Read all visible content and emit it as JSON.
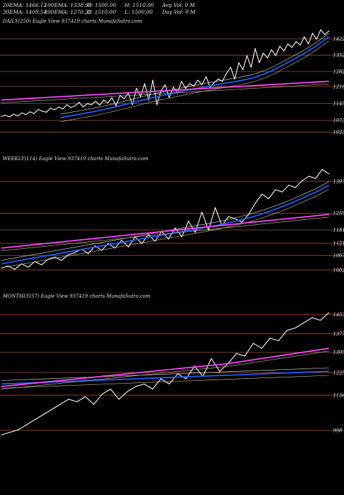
{
  "header": {
    "row1": [
      "20EMA: 1466.12",
      "100EMA: 1338.98",
      "O: 1500.00",
      "H: 1510.00",
      "Avg Vol: 0  M"
    ],
    "row2": [
      "30EMA: 1409.54",
      "200EMA: 1270.28",
      "C: 1510.00",
      "L: 1500.00",
      "Day Vol: 0  M"
    ]
  },
  "colors": {
    "background": "#000000",
    "price": "#ffffff",
    "ema_fast": "#1f5fff",
    "ema_slow": "#ff44ff",
    "level_line": "#a0522d"
  },
  "chart_data": [
    {
      "type": "line",
      "title": "DAILY(250) Eagle  View  937419 charts MunafaSutra.com",
      "levels": [
        1422,
        1352,
        1282,
        1218,
        1145,
        1073,
        1023
      ],
      "ylim": [
        1000,
        1470
      ],
      "series": [
        {
          "role": "price",
          "values": [
            1090,
            1095,
            1088,
            1100,
            1092,
            1105,
            1098,
            1110,
            1102,
            1120,
            1112,
            1108,
            1125,
            1118,
            1130,
            1122,
            1140,
            1128,
            1135,
            1150,
            1130,
            1145,
            1140,
            1155,
            1138,
            1160,
            1148,
            1170,
            1135,
            1180,
            1165,
            1190,
            1140,
            1210,
            1175,
            1230,
            1160,
            1245,
            1140,
            1200,
            1225,
            1170,
            1215,
            1190,
            1240,
            1210,
            1230,
            1220,
            1245,
            1225,
            1260,
            1215,
            1235,
            1250,
            1240,
            1275,
            1300,
            1250,
            1320,
            1290,
            1350,
            1300,
            1380,
            1320,
            1360,
            1340,
            1375,
            1350,
            1390,
            1370,
            1400,
            1385,
            1410,
            1395,
            1430,
            1400,
            1445,
            1420,
            1460,
            1440,
            1455
          ]
        },
        {
          "role": "ema_fast",
          "values": [
            1085,
            1090,
            1095,
            1100,
            1105,
            1110,
            1116,
            1122,
            1128,
            1135,
            1142,
            1149,
            1156,
            1163,
            1170,
            1176,
            1182,
            1188,
            1194,
            1200,
            1206,
            1211,
            1216,
            1221,
            1226,
            1231,
            1236,
            1241,
            1246,
            1252,
            1260,
            1270,
            1282,
            1295,
            1310,
            1325,
            1340,
            1355,
            1372,
            1390,
            1410,
            1430
          ]
        },
        {
          "role": "ema_slow",
          "values": [
            1160,
            1164,
            1168,
            1172,
            1176,
            1180,
            1184,
            1188,
            1192,
            1196,
            1200,
            1204,
            1208,
            1212,
            1216,
            1220,
            1224,
            1228,
            1232,
            1236,
            1240
          ]
        }
      ]
    },
    {
      "type": "line",
      "title": "WEEKLY(114) Eagle  View  937419 charts MunafaSutra.com",
      "levels": [
        1397,
        1255,
        1181,
        1121,
        1067,
        1002
      ],
      "ylim": [
        980,
        1470
      ],
      "series": [
        {
          "role": "price",
          "values": [
            1010,
            1020,
            1005,
            1030,
            1015,
            1040,
            1025,
            1050,
            1060,
            1045,
            1070,
            1080,
            1095,
            1075,
            1110,
            1090,
            1120,
            1100,
            1135,
            1105,
            1150,
            1120,
            1160,
            1130,
            1175,
            1140,
            1190,
            1150,
            1220,
            1170,
            1260,
            1180,
            1280,
            1200,
            1240,
            1230,
            1215,
            1250,
            1300,
            1340,
            1320,
            1360,
            1350,
            1380,
            1370,
            1400,
            1420,
            1410,
            1450,
            1430
          ]
        },
        {
          "role": "ema_fast",
          "values": [
            1030,
            1040,
            1050,
            1060,
            1070,
            1080,
            1090,
            1100,
            1110,
            1120,
            1130,
            1140,
            1150,
            1160,
            1170,
            1180,
            1190,
            1200,
            1212,
            1225,
            1240,
            1258,
            1278,
            1300,
            1325,
            1350,
            1380
          ]
        },
        {
          "role": "ema_slow",
          "values": [
            1100,
            1110,
            1120,
            1130,
            1140,
            1150,
            1160,
            1170,
            1180,
            1190,
            1200,
            1210,
            1220,
            1230,
            1240,
            1250
          ]
        }
      ]
    },
    {
      "type": "line",
      "title": "MONTHLY(57) Eagle  View  937419 charts MunafaSutra.com",
      "levels": [
        1453,
        1377,
        1305,
        1225,
        1136,
        998
      ],
      "ylim": [
        960,
        1500
      ],
      "series": [
        {
          "role": "price",
          "values": [
            980,
            990,
            1000,
            1020,
            1040,
            1060,
            1080,
            1100,
            1120,
            1110,
            1130,
            1100,
            1140,
            1160,
            1120,
            1150,
            1170,
            1180,
            1160,
            1200,
            1180,
            1220,
            1200,
            1250,
            1210,
            1280,
            1230,
            1260,
            1300,
            1290,
            1340,
            1320,
            1360,
            1350,
            1390,
            1400,
            1420,
            1440,
            1430,
            1460
          ]
        },
        {
          "role": "ema_fast",
          "values": [
            1180,
            1185,
            1190,
            1195,
            1200,
            1205,
            1210,
            1215,
            1220,
            1225,
            1230
          ]
        },
        {
          "role": "ema_slow",
          "values": [
            1170,
            1180,
            1190,
            1200,
            1210,
            1220,
            1230,
            1240,
            1250,
            1260,
            1275,
            1290,
            1305,
            1320
          ]
        }
      ]
    }
  ]
}
